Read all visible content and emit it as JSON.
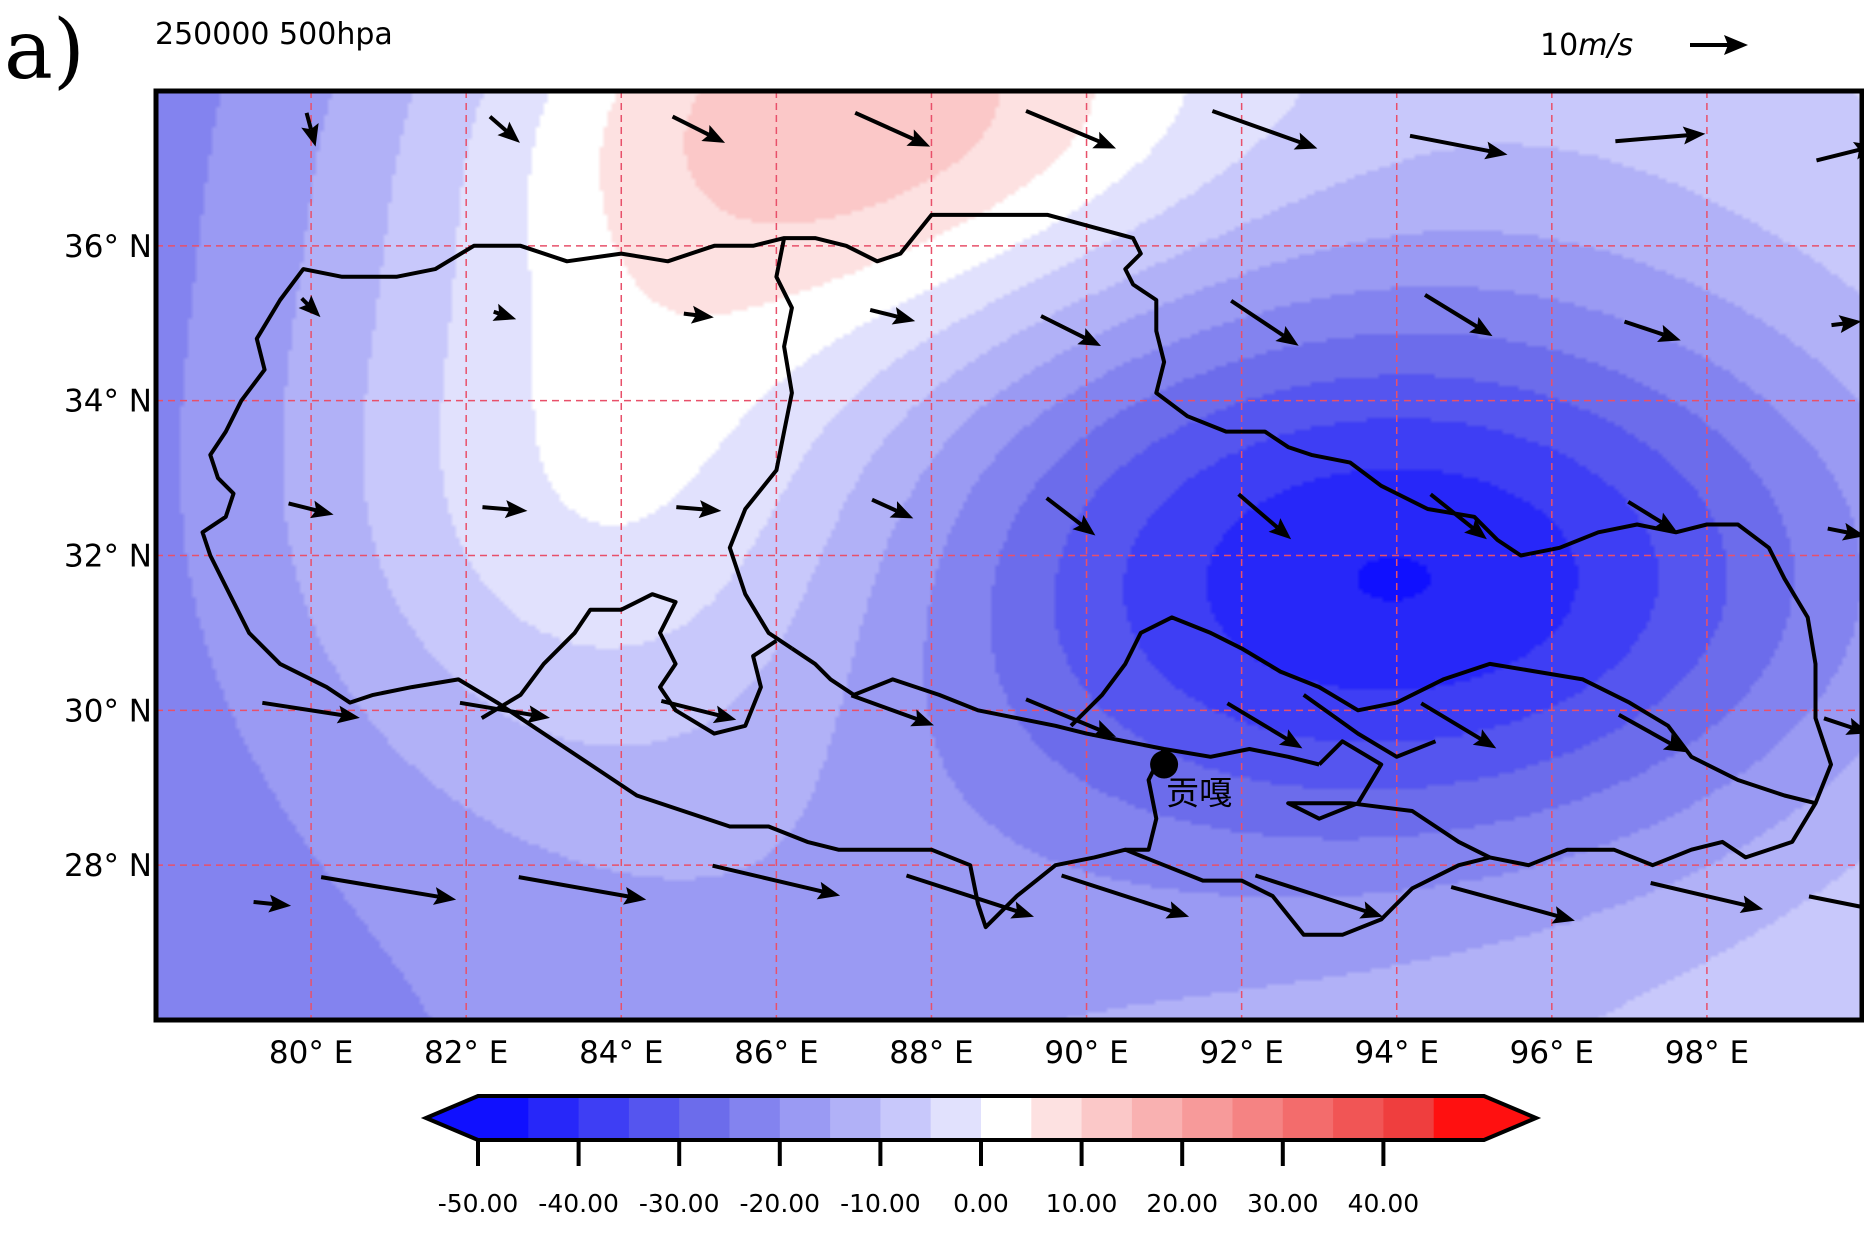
{
  "panel_label": "a)",
  "subtitle": "250000 500hpa",
  "reference_vector": {
    "magnitude": "10",
    "unit": "m/s"
  },
  "station": {
    "name": "贡嘎",
    "lon": 91.0,
    "lat": 29.3
  },
  "colors": {
    "contour_levels": [
      -50,
      -45,
      -40,
      -35,
      -30,
      -25,
      -20,
      -15,
      -10,
      -5,
      0,
      5,
      10,
      15,
      20,
      25,
      30,
      35,
      40,
      45
    ],
    "fill_colors": [
      "#1010ff",
      "#2727f9",
      "#3e3ef4",
      "#5555ef",
      "#6c6ceb",
      "#8383ef",
      "#9a9af3",
      "#b1b1f7",
      "#c8c8fb",
      "#e1e1fd",
      "#ffffff",
      "#fde1e1",
      "#fbc8c8",
      "#f9b1b1",
      "#f79a9a",
      "#f58383",
      "#f36c6c",
      "#f15555",
      "#ef3e3e",
      "#ff1010"
    ],
    "grid_line": "#e8506a",
    "border": "#000000"
  },
  "chart_data": {
    "type": "filled-contour-map-with-wind-vectors",
    "title": "250000 500hpa",
    "xlabel": "",
    "ylabel": "",
    "xlim": [
      78,
      100
    ],
    "ylim": [
      26,
      38
    ],
    "x_ticks": [
      80,
      82,
      84,
      86,
      88,
      90,
      92,
      94,
      96,
      98
    ],
    "x_tick_labels": [
      "80° E",
      "82° E",
      "84° E",
      "86° E",
      "88° E",
      "90° E",
      "92° E",
      "94° E",
      "96° E",
      "98° E"
    ],
    "y_ticks": [
      36,
      34,
      32,
      30,
      28
    ],
    "y_tick_labels": [
      "36° N",
      "34° N",
      "32° N",
      "30° N",
      "28° N"
    ],
    "grid": "dashed",
    "colorbar": {
      "orientation": "horizontal",
      "extend": "both",
      "ticks": [
        -50,
        -40,
        -30,
        -20,
        -10,
        0,
        10,
        20,
        30,
        40
      ],
      "tick_labels": [
        "-50.00",
        "-40.00",
        "-30.00",
        "-20.00",
        "-10.00",
        "0.00",
        "10.00",
        "20.00",
        "30.00",
        "40.00"
      ]
    },
    "field_centers": [
      {
        "type": "negative",
        "lon": 94.4,
        "lat": 31.7,
        "value": -50,
        "sx": 4.4,
        "sy": 2.6
      },
      {
        "type": "positive",
        "lon": 86.9,
        "lat": 37.9,
        "value": 28,
        "sx": 3.6,
        "sy": 2.2
      },
      {
        "type": "positive",
        "lon": 83.9,
        "lat": 32.8,
        "value": 20,
        "sx": 3.0,
        "sy": 2.8
      }
    ],
    "wind_vectors_u_v_ms": [
      [
        80.0,
        37.5,
        1.2,
        -4.5
      ],
      [
        82.5,
        37.5,
        4.0,
        -3.5
      ],
      [
        85.0,
        37.5,
        7.0,
        -3.5
      ],
      [
        87.5,
        37.5,
        10.0,
        -4.5
      ],
      [
        89.8,
        37.5,
        12.0,
        -5.0
      ],
      [
        92.3,
        37.5,
        14.0,
        -5.0
      ],
      [
        94.8,
        37.3,
        13.0,
        -2.5
      ],
      [
        97.4,
        37.4,
        12.0,
        1.0
      ],
      [
        99.8,
        37.2,
        8.0,
        2.0
      ],
      [
        80.0,
        35.2,
        2.5,
        -2.5
      ],
      [
        82.5,
        35.1,
        3.0,
        -1.0
      ],
      [
        85.0,
        35.1,
        4.0,
        -0.5
      ],
      [
        87.5,
        35.1,
        6.0,
        -1.5
      ],
      [
        89.8,
        34.9,
        8.0,
        -4.0
      ],
      [
        92.3,
        35.0,
        9.0,
        -6.0
      ],
      [
        94.8,
        35.1,
        9.0,
        -5.5
      ],
      [
        97.3,
        34.9,
        7.5,
        -2.5
      ],
      [
        99.8,
        35.0,
        4.0,
        0.5
      ],
      [
        80.0,
        32.6,
        6.0,
        -1.5
      ],
      [
        82.5,
        32.6,
        6.0,
        -0.5
      ],
      [
        85.0,
        32.6,
        6.0,
        -0.5
      ],
      [
        87.5,
        32.6,
        5.5,
        -2.5
      ],
      [
        89.8,
        32.5,
        6.5,
        -5.0
      ],
      [
        92.3,
        32.5,
        7.0,
        -6.0
      ],
      [
        94.8,
        32.5,
        7.5,
        -6.0
      ],
      [
        97.3,
        32.5,
        6.5,
        -4.0
      ],
      [
        99.8,
        32.3,
        5.0,
        -1.0
      ],
      [
        80.0,
        30.0,
        13.0,
        -2.0
      ],
      [
        82.5,
        30.0,
        12.0,
        -2.0
      ],
      [
        85.0,
        30.0,
        10.0,
        -2.5
      ],
      [
        87.5,
        30.0,
        11.0,
        -4.0
      ],
      [
        89.8,
        29.9,
        12.0,
        -5.0
      ],
      [
        92.3,
        29.8,
        10.0,
        -6.0
      ],
      [
        94.8,
        29.8,
        10.0,
        -6.0
      ],
      [
        97.3,
        29.7,
        9.0,
        -5.0
      ],
      [
        99.8,
        29.8,
        6.0,
        -2.0
      ],
      [
        79.5,
        27.5,
        5.0,
        -0.5
      ],
      [
        81.0,
        27.7,
        18.0,
        -3.0
      ],
      [
        83.5,
        27.7,
        17.0,
        -3.0
      ],
      [
        86.0,
        27.8,
        17.0,
        -4.0
      ],
      [
        88.5,
        27.6,
        17.0,
        -5.5
      ],
      [
        90.5,
        27.6,
        17.0,
        -5.5
      ],
      [
        93.0,
        27.6,
        17.0,
        -5.5
      ],
      [
        95.5,
        27.5,
        16.5,
        -4.5
      ],
      [
        98.0,
        27.6,
        15.0,
        -3.5
      ],
      [
        99.8,
        27.5,
        10.0,
        -2.0
      ]
    ],
    "region_outline_lonlat": [
      [
        79.6,
        35.3
      ],
      [
        79.9,
        35.7
      ],
      [
        80.4,
        35.6
      ],
      [
        81.1,
        35.6
      ],
      [
        81.6,
        35.7
      ],
      [
        82.1,
        36.0
      ],
      [
        82.7,
        36.0
      ],
      [
        83.3,
        35.8
      ],
      [
        84.0,
        35.9
      ],
      [
        84.6,
        35.8
      ],
      [
        85.2,
        36.0
      ],
      [
        85.7,
        36.0
      ],
      [
        86.1,
        36.1
      ],
      [
        86.5,
        36.1
      ],
      [
        86.9,
        36.0
      ],
      [
        87.3,
        35.8
      ],
      [
        87.6,
        35.9
      ],
      [
        88.0,
        36.4
      ],
      [
        88.8,
        36.4
      ],
      [
        89.5,
        36.4
      ],
      [
        90.6,
        36.1
      ],
      [
        90.7,
        35.9
      ],
      [
        90.5,
        35.7
      ],
      [
        90.6,
        35.5
      ],
      [
        90.9,
        35.3
      ],
      [
        90.9,
        34.9
      ],
      [
        91.0,
        34.5
      ],
      [
        90.9,
        34.1
      ],
      [
        91.3,
        33.8
      ],
      [
        91.8,
        33.6
      ],
      [
        92.3,
        33.6
      ],
      [
        92.6,
        33.4
      ],
      [
        92.9,
        33.3
      ],
      [
        93.4,
        33.2
      ],
      [
        93.8,
        32.9
      ],
      [
        94.4,
        32.6
      ],
      [
        95.0,
        32.5
      ],
      [
        95.3,
        32.2
      ],
      [
        95.6,
        32.0
      ],
      [
        96.1,
        32.1
      ],
      [
        96.6,
        32.3
      ],
      [
        97.1,
        32.4
      ],
      [
        97.6,
        32.3
      ],
      [
        98.0,
        32.4
      ],
      [
        98.4,
        32.4
      ],
      [
        98.8,
        32.1
      ],
      [
        99.0,
        31.7
      ],
      [
        99.3,
        31.2
      ],
      [
        99.4,
        30.6
      ],
      [
        99.4,
        29.9
      ],
      [
        99.6,
        29.3
      ],
      [
        99.4,
        28.8
      ],
      [
        99.1,
        28.3
      ],
      [
        98.5,
        28.1
      ],
      [
        98.2,
        28.3
      ],
      [
        97.8,
        28.2
      ],
      [
        97.3,
        28.0
      ],
      [
        96.8,
        28.2
      ],
      [
        96.2,
        28.2
      ],
      [
        95.7,
        28.0
      ],
      [
        95.2,
        28.1
      ],
      [
        94.8,
        28.0
      ],
      [
        94.2,
        27.7
      ],
      [
        93.8,
        27.3
      ],
      [
        93.3,
        27.1
      ],
      [
        92.8,
        27.1
      ],
      [
        92.4,
        27.6
      ],
      [
        92.0,
        27.8
      ],
      [
        91.5,
        27.8
      ],
      [
        91.0,
        28.0
      ],
      [
        90.5,
        28.2
      ],
      [
        90.1,
        28.1
      ],
      [
        89.6,
        28.0
      ],
      [
        89.1,
        27.6
      ],
      [
        88.7,
        27.2
      ],
      [
        88.6,
        27.5
      ],
      [
        88.5,
        28.0
      ],
      [
        88.0,
        28.2
      ],
      [
        87.4,
        28.2
      ],
      [
        86.8,
        28.2
      ],
      [
        86.4,
        28.3
      ],
      [
        85.9,
        28.5
      ],
      [
        85.4,
        28.5
      ],
      [
        84.8,
        28.7
      ],
      [
        84.2,
        28.9
      ],
      [
        83.6,
        29.3
      ],
      [
        83.0,
        29.7
      ],
      [
        82.4,
        30.1
      ],
      [
        81.9,
        30.4
      ],
      [
        81.3,
        30.3
      ],
      [
        80.8,
        30.2
      ],
      [
        80.5,
        30.1
      ],
      [
        80.2,
        30.3
      ],
      [
        79.6,
        30.6
      ],
      [
        79.2,
        31.0
      ],
      [
        78.9,
        31.6
      ],
      [
        78.7,
        32.0
      ],
      [
        78.6,
        32.3
      ],
      [
        78.9,
        32.5
      ],
      [
        79.0,
        32.8
      ],
      [
        78.8,
        33.0
      ],
      [
        78.7,
        33.3
      ],
      [
        78.9,
        33.6
      ],
      [
        79.1,
        34.0
      ],
      [
        79.4,
        34.4
      ],
      [
        79.3,
        34.8
      ],
      [
        79.6,
        35.3
      ]
    ],
    "qinghai_boundary_lonlat": [
      [
        86.1,
        36.1
      ],
      [
        86.0,
        35.6
      ],
      [
        86.2,
        35.2
      ],
      [
        86.1,
        34.7
      ],
      [
        86.2,
        34.1
      ],
      [
        86.1,
        33.6
      ],
      [
        86.0,
        33.1
      ],
      [
        85.6,
        32.6
      ],
      [
        85.4,
        32.1
      ],
      [
        85.6,
        31.5
      ],
      [
        85.9,
        31.0
      ],
      [
        86.2,
        30.8
      ]
    ],
    "internal_boundaries_lonlat": [
      [
        [
          86.2,
          30.8
        ],
        [
          86.5,
          30.6
        ],
        [
          86.7,
          30.4
        ],
        [
          87.0,
          30.2
        ],
        [
          87.5,
          30.4
        ],
        [
          88.1,
          30.2
        ],
        [
          88.6,
          30.0
        ],
        [
          89.1,
          29.9
        ],
        [
          89.6,
          29.8
        ],
        [
          90.0,
          29.7
        ],
        [
          90.5,
          29.6
        ],
        [
          91.0,
          29.5
        ],
        [
          91.6,
          29.4
        ],
        [
          92.1,
          29.5
        ],
        [
          92.6,
          29.4
        ],
        [
          93.0,
          29.3
        ]
      ],
      [
        [
          89.8,
          29.8
        ],
        [
          90.2,
          30.2
        ],
        [
          90.5,
          30.6
        ],
        [
          90.7,
          31.0
        ],
        [
          91.1,
          31.2
        ],
        [
          91.6,
          31.0
        ],
        [
          92.0,
          30.8
        ],
        [
          92.5,
          30.5
        ],
        [
          93.0,
          30.3
        ],
        [
          93.5,
          30.0
        ],
        [
          94.0,
          30.1
        ],
        [
          94.6,
          30.4
        ],
        [
          95.2,
          30.6
        ],
        [
          95.8,
          30.5
        ],
        [
          96.4,
          30.4
        ],
        [
          97.0,
          30.1
        ],
        [
          97.5,
          29.8
        ],
        [
          97.8,
          29.4
        ],
        [
          98.4,
          29.1
        ],
        [
          99.0,
          28.9
        ],
        [
          99.4,
          28.8
        ]
      ],
      [
        [
          91.0,
          29.5
        ],
        [
          90.8,
          29.1
        ],
        [
          90.9,
          28.6
        ],
        [
          90.8,
          28.2
        ],
        [
          90.5,
          28.2
        ]
      ],
      [
        [
          93.0,
          29.3
        ],
        [
          93.3,
          29.6
        ],
        [
          93.8,
          29.3
        ],
        [
          93.5,
          28.8
        ],
        [
          93.0,
          28.6
        ],
        [
          92.6,
          28.8
        ],
        [
          93.4,
          28.8
        ],
        [
          94.2,
          28.7
        ],
        [
          94.8,
          28.3
        ],
        [
          95.2,
          28.1
        ]
      ],
      [
        [
          92.8,
          30.2
        ],
        [
          93.5,
          29.7
        ],
        [
          94.0,
          29.4
        ],
        [
          94.5,
          29.6
        ]
      ],
      [
        [
          82.2,
          29.9
        ],
        [
          82.7,
          30.2
        ],
        [
          83.0,
          30.6
        ],
        [
          83.4,
          31.0
        ],
        [
          83.6,
          31.3
        ],
        [
          84.0,
          31.3
        ],
        [
          84.4,
          31.5
        ],
        [
          84.7,
          31.4
        ],
        [
          84.5,
          31.0
        ],
        [
          84.7,
          30.6
        ],
        [
          84.5,
          30.3
        ],
        [
          84.7,
          30.0
        ],
        [
          85.2,
          29.7
        ],
        [
          85.6,
          29.8
        ],
        [
          85.8,
          30.3
        ],
        [
          85.7,
          30.7
        ],
        [
          86.0,
          30.9
        ]
      ]
    ]
  }
}
